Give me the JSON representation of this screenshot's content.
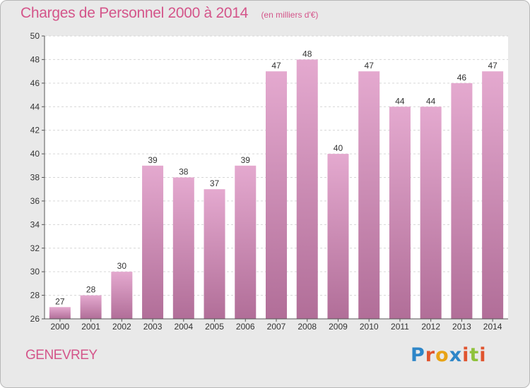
{
  "header": {
    "title": "Charges de Personnel 2000 à 2014",
    "subtitle": "(en milliers d'€)"
  },
  "footer": {
    "commune": "GENEVREY",
    "logo_text": "Proxiti",
    "logo_colors": [
      "#2e86c8",
      "#e0542e",
      "#e8a315",
      "#2e86c8",
      "#e0542e",
      "#8fc23c",
      "#e0542e"
    ]
  },
  "colors": {
    "title": "#d4558a",
    "bar_top": "#e4a9cf",
    "bar_bottom": "#b16e98",
    "plot_bg": "#ffffff",
    "grid": "#d6d6d6"
  },
  "chart_data": {
    "type": "bar",
    "title": "Charges de Personnel 2000 à 2014",
    "subtitle": "(en milliers d'€)",
    "categories": [
      "2000",
      "2001",
      "2002",
      "2003",
      "2004",
      "2005",
      "2006",
      "2007",
      "2008",
      "2009",
      "2010",
      "2011",
      "2012",
      "2013",
      "2014"
    ],
    "values": [
      27,
      28,
      30,
      39,
      38,
      37,
      39,
      47,
      48,
      40,
      47,
      44,
      44,
      46,
      47
    ],
    "ylim": [
      26,
      50
    ],
    "yticks": [
      26,
      28,
      30,
      32,
      34,
      36,
      38,
      40,
      42,
      44,
      46,
      48,
      50
    ],
    "grid": true,
    "xlabel": "",
    "ylabel": ""
  }
}
